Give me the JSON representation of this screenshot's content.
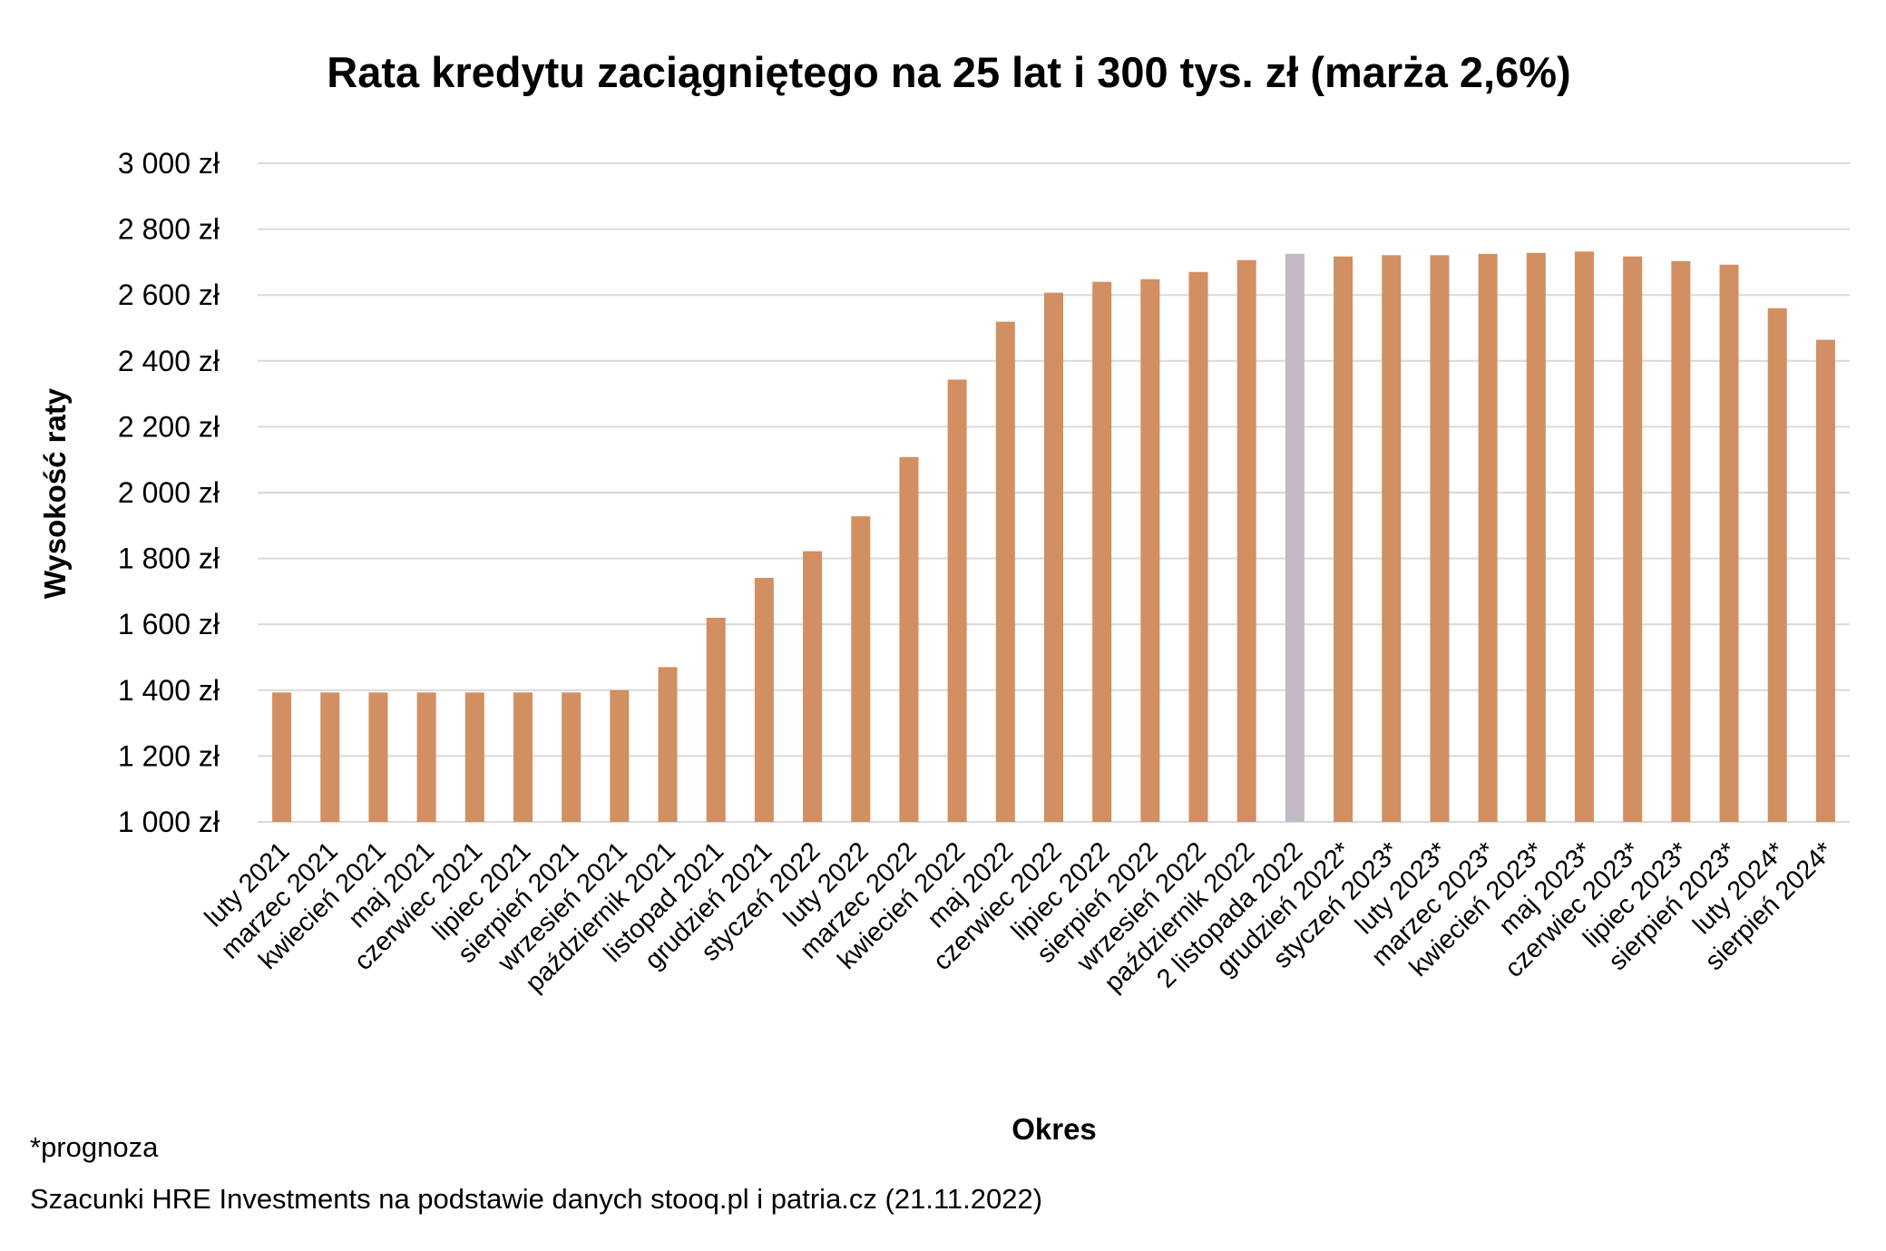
{
  "chart_data": {
    "type": "bar",
    "title": "Rata kredytu zaciągniętego na 25 lat i 300 tys. zł (marża 2,6%)",
    "xlabel": "Okres",
    "ylabel": "Wysokość raty",
    "ylim": [
      1000,
      3000
    ],
    "yticks": [
      1000,
      1200,
      1400,
      1600,
      1800,
      2000,
      2200,
      2400,
      2600,
      2800,
      3000
    ],
    "ytick_labels": [
      "1 000 zł",
      "1 200 zł",
      "1 400 zł",
      "1 600 zł",
      "1 800 zł",
      "2 000 zł",
      "2 200 zł",
      "2 400 zł",
      "2 600 zł",
      "2 800 zł",
      "3 000 zł"
    ],
    "grid": true,
    "categories": [
      "luty 2021",
      "marzec 2021",
      "kwiecień 2021",
      "maj 2021",
      "czerwiec 2021",
      "lipiec 2021",
      "sierpień 2021",
      "wrzesień 2021",
      "październik 2021",
      "listopad 2021",
      "grudzień 2021",
      "styczeń 2022",
      "luty 2022",
      "marzec 2022",
      "kwiecień 2022",
      "maj 2022",
      "czerwiec 2022",
      "lipiec 2022",
      "sierpień 2022",
      "wrzesień 2022",
      "październik 2022",
      "2 listopada 2022",
      "grudzień 2022*",
      "styczeń 2023*",
      "luty 2023*",
      "marzec 2023*",
      "kwiecień 2023*",
      "maj 2023*",
      "czerwiec 2023*",
      "lipiec 2023*",
      "sierpień 2023*",
      "luty 2024*",
      "sierpień 2024*"
    ],
    "values": [
      1393,
      1393,
      1393,
      1393,
      1393,
      1393,
      1393,
      1400,
      1470,
      1620,
      1741,
      1822,
      1928,
      2108,
      2343,
      2519,
      2607,
      2640,
      2648,
      2670,
      2706,
      2725,
      2717,
      2721,
      2721,
      2725,
      2728,
      2732,
      2717,
      2703,
      2692,
      2560,
      2464
    ],
    "highlight_index": 21,
    "colors": {
      "bar": "#D18F62",
      "highlight": "#BFBAC5",
      "grid": "#D9D9D9"
    }
  },
  "notes": {
    "forecast": "*prognoza",
    "source": "Szacunki HRE Investments na podstawie danych stooq.pl i patria.cz (21.11.2022)"
  }
}
